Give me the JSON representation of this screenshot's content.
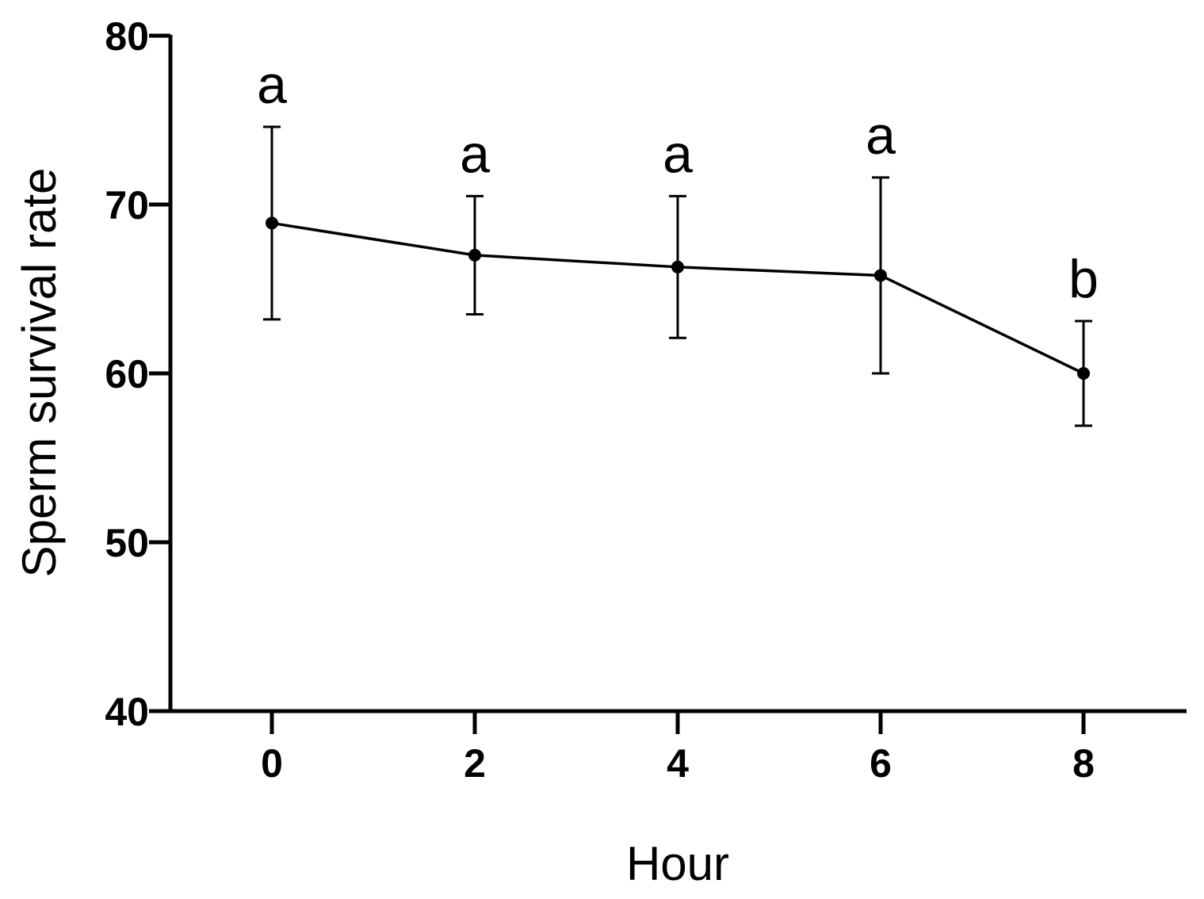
{
  "chart_data": {
    "type": "line",
    "title": "",
    "xlabel": "Hour",
    "ylabel": "Sperm survival rate",
    "xlim": [
      -1,
      9
    ],
    "ylim": [
      40,
      80
    ],
    "x_ticks": [
      0,
      2,
      4,
      6,
      8
    ],
    "y_ticks": [
      40,
      50,
      60,
      70,
      80
    ],
    "grid": false,
    "legend": "none",
    "series": [
      {
        "x": [
          0,
          2,
          4,
          6,
          8
        ],
        "y": [
          68.9,
          67.0,
          66.3,
          65.8,
          60.0
        ],
        "error": [
          5.7,
          3.5,
          4.2,
          5.8,
          3.1
        ],
        "labels": [
          "a",
          "a",
          "a",
          "a",
          "b"
        ]
      }
    ],
    "colors": {
      "line": "#000000",
      "marker": "#000000",
      "axis": "#000000"
    }
  }
}
